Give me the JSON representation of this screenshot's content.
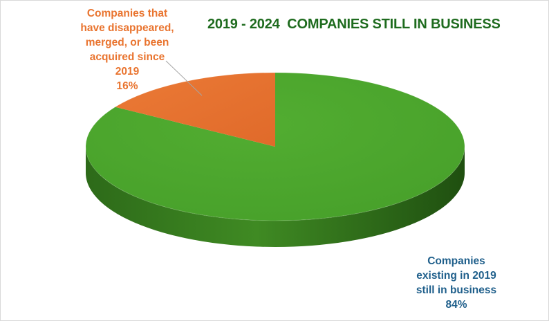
{
  "chart_data": {
    "type": "pie",
    "title": "2019 - 2024  COMPANIES STILL IN BUSINESS",
    "slices": [
      {
        "label_lines": [
          "Companies",
          "existing in 2019",
          "still in business"
        ],
        "value": 84,
        "value_label": "84%",
        "color": "#4ea72e"
      },
      {
        "label_lines": [
          "Companies that",
          "have disappeared,",
          "merged, or been",
          "acquired since",
          "2019"
        ],
        "value": 16,
        "value_label": "16%",
        "color": "#e97132"
      }
    ],
    "style": "3d"
  }
}
